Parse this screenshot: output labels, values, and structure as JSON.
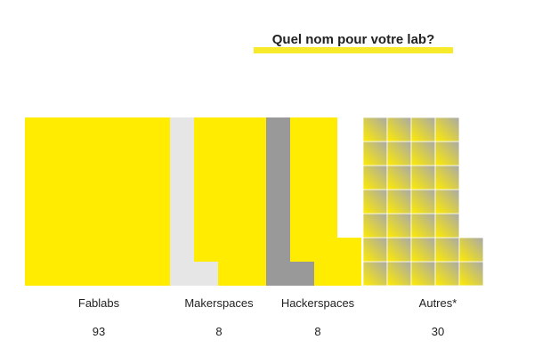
{
  "chart_data": {
    "type": "bar",
    "title": "Quel nom pour votre lab?",
    "categories": [
      "Fablabs",
      "Makerspaces",
      "Hackerspaces",
      "Autres*"
    ],
    "values": [
      93,
      8,
      8,
      30
    ],
    "xlabel": "",
    "ylabel": "",
    "grid": false,
    "legend": "none",
    "colors": [
      "#ffec00",
      "#e6e6e6",
      "#999999",
      "#ffec00"
    ]
  }
}
